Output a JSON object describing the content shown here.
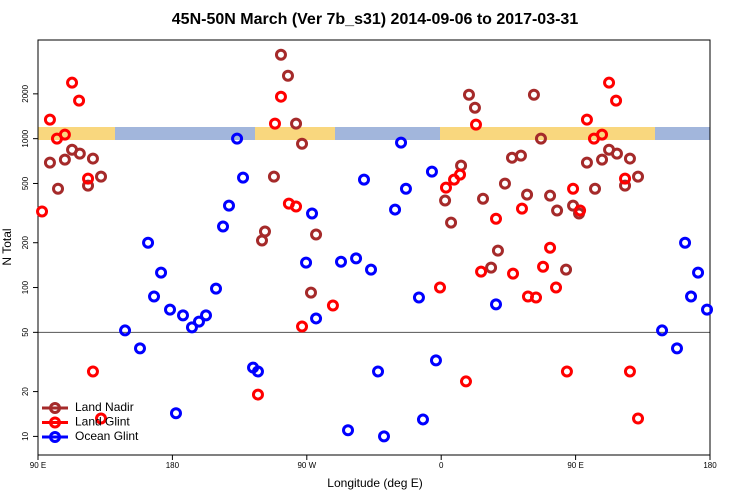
{
  "chart_data": {
    "type": "scatter",
    "title": "45N-50N March (Ver 7b_s31)   2014-09-06 to 2017-03-31",
    "x_label": "Longitude (deg E)",
    "y_label": "N Total",
    "xlim": [
      90,
      540
    ],
    "xticks": [
      {
        "value": 90,
        "label": "90 E"
      },
      180,
      {
        "value": 270,
        "label": "90 W"
      },
      {
        "value": 360,
        "label": "0"
      },
      {
        "value": 450,
        "label": "90 E"
      },
      {
        "value": 540,
        "label": "180"
      }
    ],
    "ylim": [
      7.5,
      4600
    ],
    "yticks": [
      10,
      20,
      50,
      100,
      200,
      500,
      1000,
      2000
    ],
    "ylog": true,
    "hlines": [
      50
    ],
    "legend": "bottom-left",
    "series": [
      {
        "name": "Land Nadir",
        "color": "#a52a2a",
        "x": [
          98,
          103.4,
          108,
          112.8,
          118,
          123.5,
          126.8,
          132.2,
          248,
          252.7,
          257.4,
          262.8,
          266.8,
          242,
          240,
          276.2,
          272.8,
          362.6,
          366.6,
          373.3,
          378.6,
          382.6,
          388,
          393.4,
          398,
          402.7,
          407.4,
          413.4,
          417.5,
          422.1,
          426.8,
          432.9,
          437.6,
          443.6,
          448.3,
          452.3,
          457.6,
          463,
          467.7,
          472.4,
          477.7,
          483.1,
          486.4,
          491.8
        ],
        "values": [
          690,
          461,
          723,
          843,
          793,
          484,
          735,
          556,
          556,
          3664,
          2648,
          1262,
          925,
          238,
          207,
          227,
          92.5,
          384,
          273,
          659,
          1973,
          1614,
          395,
          136,
          177,
          499,
          745,
          769,
          421,
          1973,
          1000,
          414,
          329,
          132,
          355,
          314,
          690,
          461,
          723,
          843,
          793,
          484,
          735,
          556
        ]
      },
      {
        "name": "Land Glint",
        "color": "#ff0000",
        "x": [
          92.7,
          98,
          102.7,
          108,
          112.8,
          117.5,
          123.5,
          126.8,
          132.2,
          237.3,
          248.7,
          252.7,
          258,
          262.8,
          266.8,
          287.5,
          359.2,
          363.2,
          368.6,
          372.6,
          376.6,
          383.3,
          386.7,
          396.7,
          408.1,
          414.1,
          418.1,
          423.5,
          428.2,
          432.9,
          436.9,
          444.2,
          448.3,
          453,
          457.6,
          462.3,
          467.7,
          472.4,
          477.1,
          483.1,
          486.4,
          491.8
        ],
        "values": [
          324,
          1342,
          1000,
          1064,
          2377,
          1800,
          539,
          27.3,
          13.2,
          19.1,
          1262,
          1914,
          366,
          350,
          54.7,
          75.7,
          100,
          469,
          531,
          573,
          23.4,
          1242,
          128,
          290,
          124,
          339,
          87,
          85.7,
          138,
          185,
          100,
          27.3,
          461,
          329,
          1342,
          1000,
          1064,
          2377,
          1800,
          539,
          27.3,
          13.2
        ]
      },
      {
        "name": "Ocean Glint",
        "color": "#0000ff",
        "x": [
          148.3,
          158.3,
          163.7,
          167.7,
          172.4,
          178.4,
          182.4,
          187.1,
          193.1,
          197.8,
          202.5,
          209.2,
          213.9,
          217.9,
          223.3,
          227.3,
          234,
          237.3,
          269.5,
          273.5,
          276.2,
          292.9,
          297.6,
          303,
          308.3,
          313,
          317.7,
          321.7,
          329.1,
          333.1,
          336.4,
          345.1,
          347.8,
          353.8,
          356.5,
          396.7,
          507.9,
          517.9,
          523.3,
          527.3,
          532,
          538
        ],
        "values": [
          51.5,
          39,
          200,
          87,
          126,
          71,
          14.3,
          65,
          54,
          59,
          65,
          98.4,
          257,
          355,
          1000,
          547,
          29,
          27.3,
          147,
          314,
          62,
          149,
          11,
          157,
          531,
          132,
          27.3,
          10,
          334,
          940,
          461,
          85.7,
          13,
          601,
          32.4,
          77,
          51.5,
          39,
          200,
          87,
          126,
          71
        ]
      }
    ]
  }
}
